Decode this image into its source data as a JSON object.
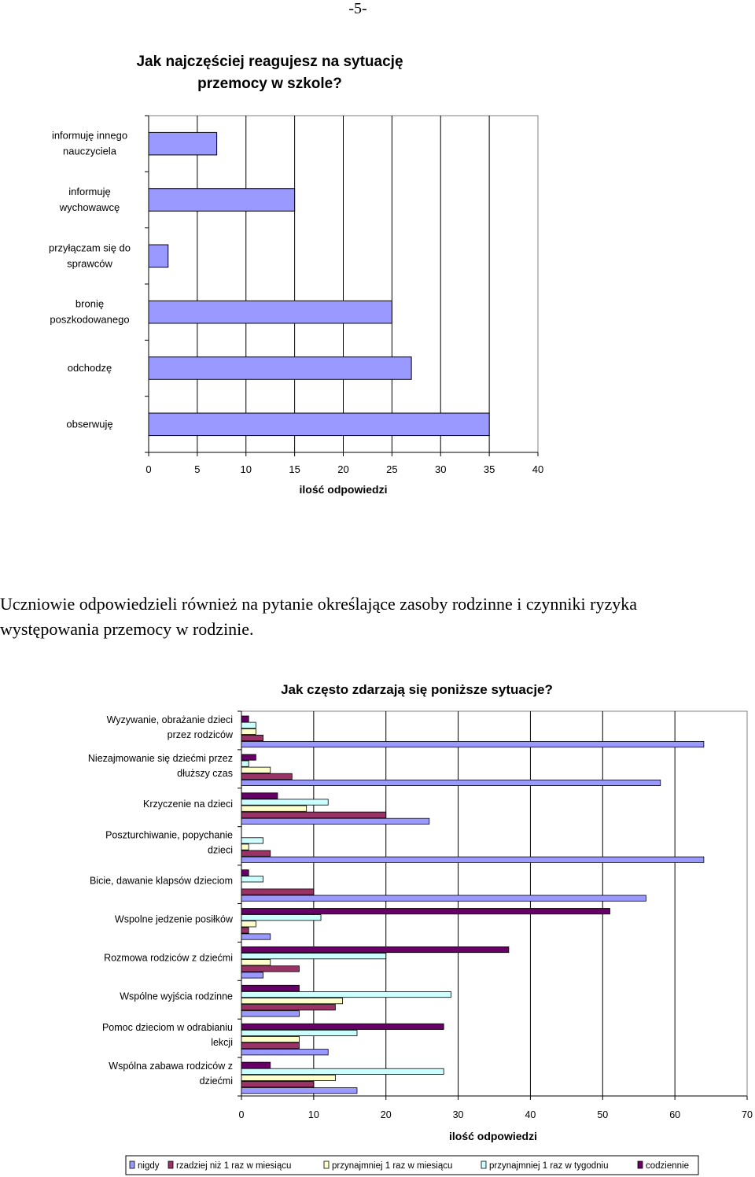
{
  "page": {
    "number": "-5-"
  },
  "paragraph": {
    "line1": "Uczniowie odpowiedzieli również na pytanie określające zasoby rodzinne i czynniki ryzyka",
    "line2": "występowania przemocy w rodzinie."
  },
  "colors": {
    "nigdy": "#9999ff",
    "rzadziej": "#993366",
    "przynajmniej_miesiac": "#ffffcc",
    "przynajmniej_tydzien": "#ccffff",
    "codziennie": "#660066"
  },
  "chart_data": [
    {
      "type": "bar",
      "orientation": "horizontal",
      "title": [
        "Jak najczęściej reagujesz na sytuację",
        "przemocy w szkole?"
      ],
      "xlabel": "ilość odpowiedzi",
      "ylabel": "",
      "xlim": [
        0,
        40
      ],
      "xticks": [
        0,
        5,
        10,
        15,
        20,
        25,
        30,
        35,
        40
      ],
      "grid": true,
      "categories": [
        [
          "informuję innego",
          "nauczyciela"
        ],
        [
          "informuję",
          "wychowawcę"
        ],
        [
          "przyłączam się do",
          "sprawców"
        ],
        [
          "bronię",
          "poszkodowanego"
        ],
        [
          "odchodzę"
        ],
        [
          "obserwuję"
        ]
      ],
      "values": [
        7,
        15,
        2,
        25,
        27,
        35
      ],
      "bar_color": "#9999ff"
    },
    {
      "type": "bar",
      "orientation": "horizontal",
      "title": "Jak często zdarzają się poniższe sytuacje?",
      "xlabel": "ilość odpowiedzi",
      "ylabel": "",
      "xlim": [
        0,
        70
      ],
      "xticks": [
        0,
        10,
        20,
        30,
        40,
        50,
        60,
        70
      ],
      "grid": true,
      "legend_position": "bottom",
      "categories": [
        [
          "Wyzywanie, obrażanie dzieci",
          "przez rodziców"
        ],
        [
          "Niezajmowanie się dziećmi przez",
          "dłuższy czas"
        ],
        [
          "Krzyczenie na dzieci"
        ],
        [
          "Poszturchiwanie, popychanie",
          "dzieci"
        ],
        [
          "Bicie, dawanie klapsów dzieciom"
        ],
        [
          "Wspolne jedzenie posiłków"
        ],
        [
          "Rozmowa rodziców z dziećmi"
        ],
        [
          "Wspólne wyjścia rodzinne"
        ],
        [
          "Pomoc dzieciom w odrabianiu",
          "lekcji"
        ],
        [
          "Wspólna zabawa rodziców z",
          "dziećmi"
        ]
      ],
      "series": [
        {
          "name": "codziennie",
          "color": "#660066",
          "values": [
            1,
            2,
            5,
            0,
            1,
            51,
            37,
            8,
            28,
            4
          ]
        },
        {
          "name": "przynajmniej 1 raz w tygodniu",
          "color": "#ccffff",
          "values": [
            2,
            1,
            12,
            3,
            3,
            11,
            20,
            29,
            16,
            28
          ]
        },
        {
          "name": "przynajmniej 1 raz w miesiącu",
          "color": "#ffffcc",
          "values": [
            2,
            4,
            9,
            1,
            0,
            2,
            4,
            14,
            8,
            13
          ]
        },
        {
          "name": "rzadziej niż 1 raz w miesiącu",
          "color": "#993366",
          "values": [
            3,
            7,
            20,
            4,
            10,
            1,
            8,
            13,
            8,
            10
          ]
        },
        {
          "name": "nigdy",
          "color": "#9999ff",
          "values": [
            64,
            58,
            26,
            64,
            56,
            4,
            3,
            8,
            12,
            16
          ]
        }
      ],
      "legend_order": [
        "nigdy",
        "rzadziej niż 1 raz w miesiącu",
        "przynajmniej 1 raz w miesiącu",
        "przynajmniej 1 raz w tygodniu",
        "codziennie"
      ]
    }
  ]
}
